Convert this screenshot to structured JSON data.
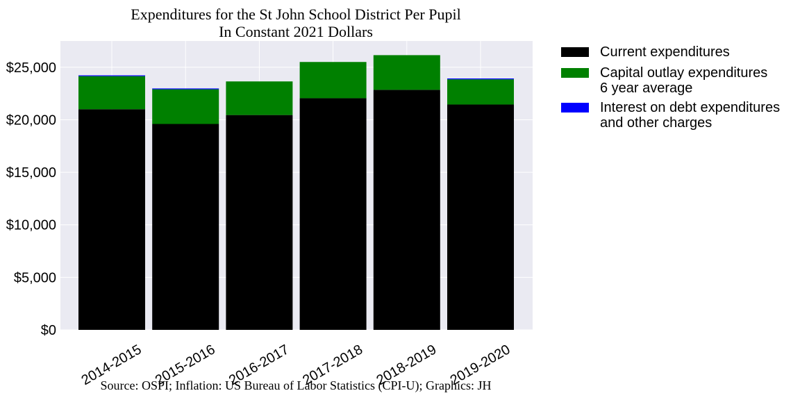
{
  "chart_data": {
    "type": "bar",
    "stacked": true,
    "title": "Expenditures for the St John School District Per Pupil",
    "subtitle": "In Constant 2021 Dollars",
    "source": "Source: OSPI; Inflation: US Bureau of Labor Statistics (CPI-U); Graphics: JH",
    "categories": [
      "2014-2015",
      "2015-2016",
      "2016-2017",
      "2017-2018",
      "2018-2019",
      "2019-2020"
    ],
    "series": [
      {
        "name": "Current expenditures",
        "color": "#000000",
        "values": [
          21000,
          19600,
          20450,
          22050,
          22850,
          21450
        ]
      },
      {
        "name": "Capital outlay expenditures\n6 year average",
        "color": "#008000",
        "values": [
          3150,
          3300,
          3200,
          3450,
          3300,
          2400
        ]
      },
      {
        "name": "Interest on debt expenditures\nand other charges",
        "color": "#0000ff",
        "values": [
          80,
          80,
          0,
          0,
          0,
          80
        ]
      }
    ],
    "ylim": [
      0,
      27500
    ],
    "yticks": [
      0,
      5000,
      10000,
      15000,
      20000,
      25000
    ],
    "ytick_labels": [
      "$0",
      "$5,000",
      "$10,000",
      "$15,000",
      "$20,000",
      "$25,000"
    ],
    "xlabel": "",
    "ylabel": "",
    "grid": true,
    "legend_placement": "outside-right-top"
  }
}
